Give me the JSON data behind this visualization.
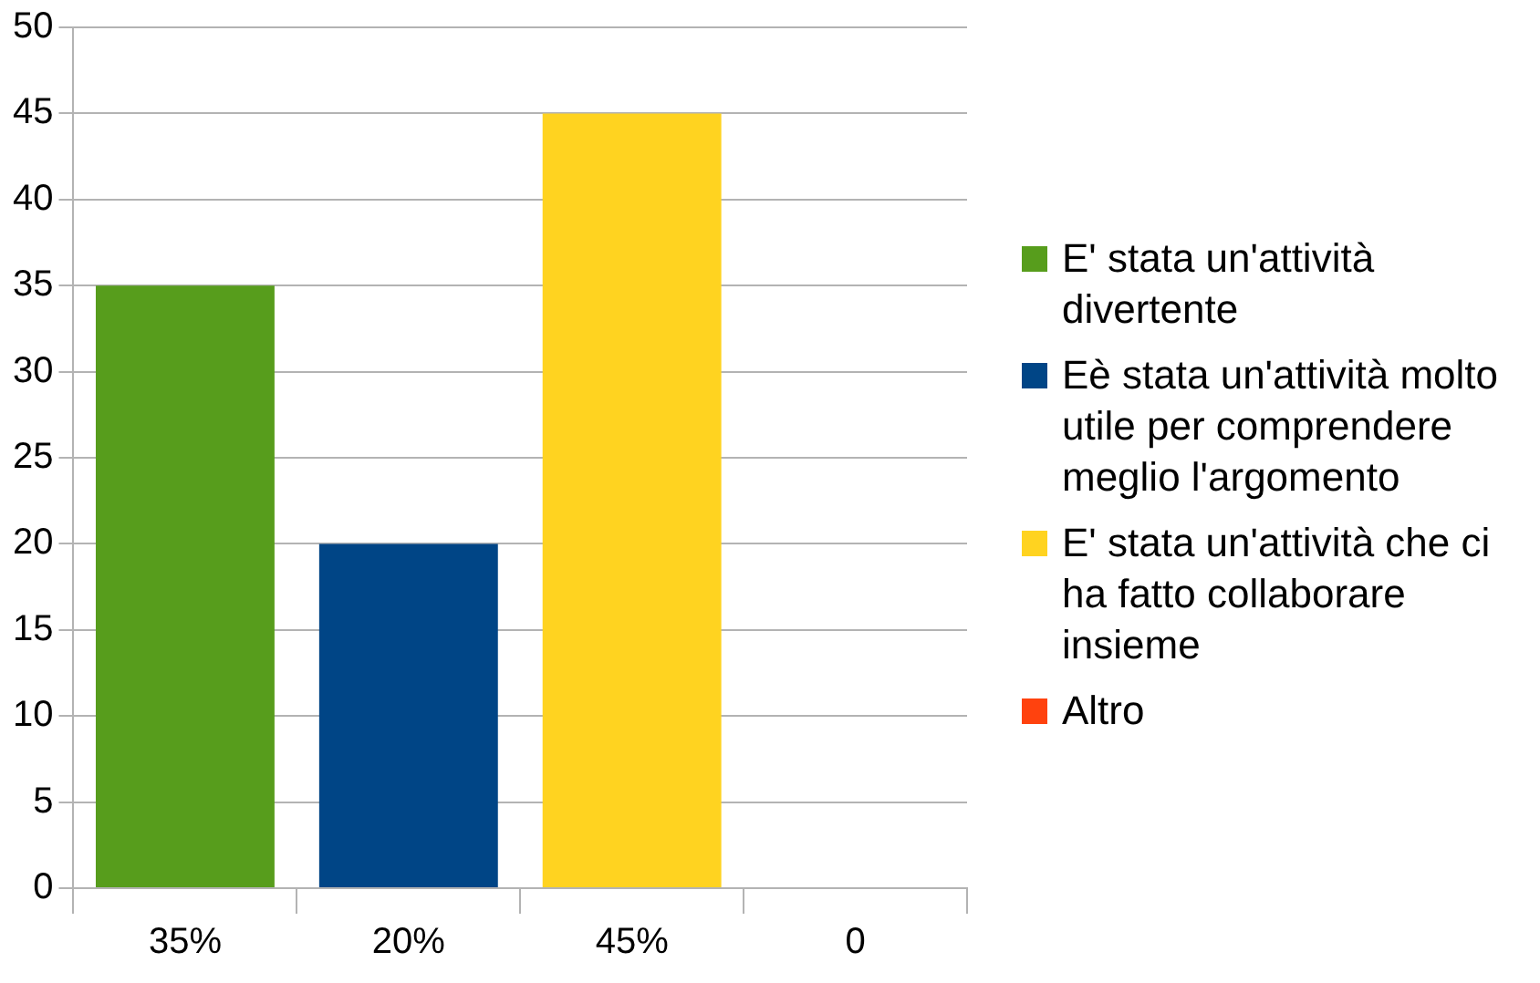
{
  "chart_data": {
    "type": "bar",
    "categories": [
      "35%",
      "20%",
      "45%",
      "0"
    ],
    "series": [
      {
        "name": "E' stata un'attività divertente",
        "color": "#579d1c",
        "values": [
          35,
          null,
          null,
          null
        ]
      },
      {
        "name": "Eè stata un'attività molto utile per comprendere meglio l'argomento",
        "color": "#004586",
        "values": [
          null,
          20,
          null,
          null
        ]
      },
      {
        "name": "E' stata un'attività che ci ha fatto collaborare insieme",
        "color": "#ffd320",
        "values": [
          null,
          null,
          45,
          null
        ]
      },
      {
        "name": "Altro",
        "color": "#ff420e",
        "values": [
          null,
          null,
          null,
          0
        ]
      }
    ],
    "ylim": [
      0,
      50
    ],
    "yticks": [
      0,
      5,
      10,
      15,
      20,
      25,
      30,
      35,
      40,
      45,
      50
    ],
    "grid": "y",
    "legend": "right"
  }
}
